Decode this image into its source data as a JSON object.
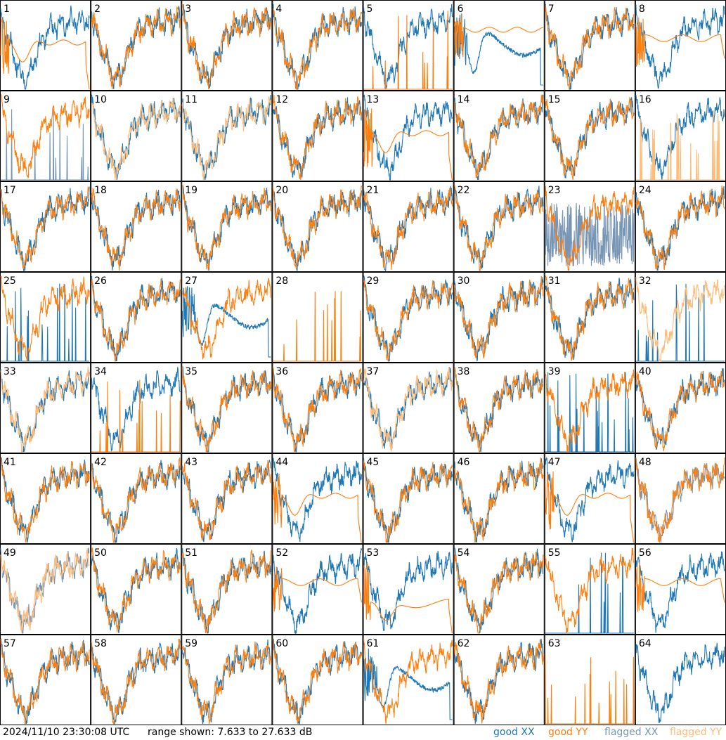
{
  "footer": {
    "timestamp": "2024/11/10 23:30:08 UTC",
    "range": "range shown: 7.633 to 27.633 dB",
    "legend": [
      {
        "label": "good XX",
        "color": "#1f77b4"
      },
      {
        "label": "good YY",
        "color": "#ff7f0e"
      },
      {
        "label": "flagged XX",
        "color": "#7896b4"
      },
      {
        "label": "flagged YY",
        "color": "#ffbb78"
      }
    ]
  },
  "chart_data": {
    "type": "line",
    "layout": "small-multiples 8x8",
    "y_range_db": [
      7.633,
      27.633
    ],
    "series_colors": {
      "good_xx": "#1f77b4",
      "good_yy": "#ff7f0e",
      "flagged_xx": "#7896b4",
      "flagged_yy": "#ffbb78"
    },
    "panels": [
      {
        "id": 1,
        "xx": "normal",
        "yy": "dead-roll"
      },
      {
        "id": 2,
        "xx": "normal",
        "yy": "normal"
      },
      {
        "id": 3,
        "xx": "normal",
        "yy": "normal"
      },
      {
        "id": 4,
        "xx": "normal",
        "yy": "normal"
      },
      {
        "id": 5,
        "xx": "normal",
        "yy": "spikes"
      },
      {
        "id": 6,
        "xx": "dip",
        "yy": "flat-high"
      },
      {
        "id": 7,
        "xx": "normal",
        "yy": "normal"
      },
      {
        "id": 8,
        "xx": "normal",
        "yy": "flat-mid"
      },
      {
        "id": 9,
        "xx": "flagged-spikes",
        "yy": "normal"
      },
      {
        "id": 10,
        "xx": "normal",
        "yy": "flagged"
      },
      {
        "id": 11,
        "xx": "normal",
        "yy": "flagged"
      },
      {
        "id": 12,
        "xx": "normal",
        "yy": "normal"
      },
      {
        "id": 13,
        "xx": "normal",
        "yy": "dead-roll"
      },
      {
        "id": 14,
        "xx": "normal",
        "yy": "normal"
      },
      {
        "id": 15,
        "xx": "normal",
        "yy": "normal"
      },
      {
        "id": 16,
        "xx": "normal",
        "yy": "flagged-spikes"
      },
      {
        "id": 17,
        "xx": "normal",
        "yy": "normal"
      },
      {
        "id": 18,
        "xx": "normal",
        "yy": "normal"
      },
      {
        "id": 19,
        "xx": "normal",
        "yy": "normal"
      },
      {
        "id": 20,
        "xx": "normal",
        "yy": "normal"
      },
      {
        "id": 21,
        "xx": "normal",
        "yy": "normal"
      },
      {
        "id": 22,
        "xx": "normal",
        "yy": "normal"
      },
      {
        "id": 23,
        "xx": "flagged-noise",
        "yy": "normal"
      },
      {
        "id": 24,
        "xx": "normal",
        "yy": "normal"
      },
      {
        "id": 25,
        "xx": "spikes",
        "yy": "normal"
      },
      {
        "id": 26,
        "xx": "normal",
        "yy": "normal"
      },
      {
        "id": 27,
        "xx": "dip",
        "yy": "normal"
      },
      {
        "id": 28,
        "xx": "none",
        "yy": "spikes"
      },
      {
        "id": 29,
        "xx": "normal",
        "yy": "normal"
      },
      {
        "id": 30,
        "xx": "normal",
        "yy": "normal"
      },
      {
        "id": 31,
        "xx": "normal",
        "yy": "normal"
      },
      {
        "id": 32,
        "xx": "spikes",
        "yy": "flagged"
      },
      {
        "id": 33,
        "xx": "normal",
        "yy": "flagged"
      },
      {
        "id": 34,
        "xx": "normal",
        "yy": "spikes"
      },
      {
        "id": 35,
        "xx": "normal",
        "yy": "normal"
      },
      {
        "id": 36,
        "xx": "normal",
        "yy": "normal"
      },
      {
        "id": 37,
        "xx": "normal",
        "yy": "flagged"
      },
      {
        "id": 38,
        "xx": "normal",
        "yy": "normal"
      },
      {
        "id": 39,
        "xx": "spikes",
        "yy": "normal"
      },
      {
        "id": 40,
        "xx": "normal",
        "yy": "normal"
      },
      {
        "id": 41,
        "xx": "normal",
        "yy": "normal"
      },
      {
        "id": 42,
        "xx": "normal",
        "yy": "normal"
      },
      {
        "id": 43,
        "xx": "normal",
        "yy": "normal"
      },
      {
        "id": 44,
        "xx": "normal",
        "yy": "dead-roll"
      },
      {
        "id": 45,
        "xx": "normal",
        "yy": "normal"
      },
      {
        "id": 46,
        "xx": "normal",
        "yy": "normal"
      },
      {
        "id": 47,
        "xx": "normal",
        "yy": "dead-roll"
      },
      {
        "id": 48,
        "xx": "flagged",
        "yy": "normal"
      },
      {
        "id": 49,
        "xx": "flagged",
        "yy": "flagged"
      },
      {
        "id": 50,
        "xx": "normal",
        "yy": "normal"
      },
      {
        "id": 51,
        "xx": "normal",
        "yy": "normal"
      },
      {
        "id": 52,
        "xx": "normal",
        "yy": "flat-mid"
      },
      {
        "id": 53,
        "xx": "normal",
        "yy": "dip-roll"
      },
      {
        "id": 54,
        "xx": "normal",
        "yy": "normal"
      },
      {
        "id": 55,
        "xx": "spikes",
        "yy": "normal"
      },
      {
        "id": 56,
        "xx": "normal",
        "yy": "flat-mid"
      },
      {
        "id": 57,
        "xx": "normal",
        "yy": "normal"
      },
      {
        "id": 58,
        "xx": "normal",
        "yy": "normal"
      },
      {
        "id": 59,
        "xx": "normal",
        "yy": "normal"
      },
      {
        "id": 60,
        "xx": "normal",
        "yy": "normal"
      },
      {
        "id": 61,
        "xx": "dip",
        "yy": "normal"
      },
      {
        "id": 62,
        "xx": "normal",
        "yy": "normal"
      },
      {
        "id": 63,
        "xx": "none",
        "yy": "spikes"
      },
      {
        "id": 64,
        "xx": "normal",
        "yy": "none"
      }
    ]
  }
}
